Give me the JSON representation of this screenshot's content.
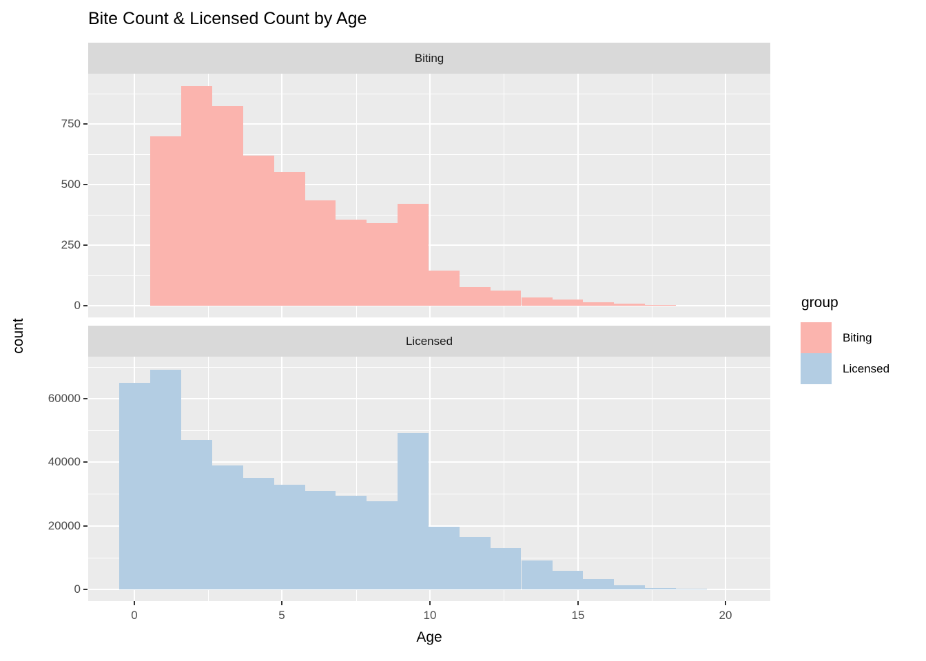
{
  "title": "Bite Count & Licensed Count by Age",
  "axes": {
    "x_label": "Age",
    "y_label": "count",
    "x_ticks": [
      0,
      5,
      10,
      15,
      20
    ]
  },
  "legend": {
    "title": "group",
    "items": [
      {
        "label": "Biting",
        "color": "#FBB4AE"
      },
      {
        "label": "Licensed",
        "color": "#B3CDE3"
      }
    ]
  },
  "colors": {
    "biting_fill": "#FBB4AE",
    "licensed_fill": "#B3CDE3",
    "panel_background": "#EBEBEB",
    "strip_background": "#D9D9D9",
    "gridline": "#FFFFFF",
    "axis_text": "#4D4D4D",
    "tick_mark": "#333333",
    "text": "#000000"
  },
  "chart_data": [
    {
      "type": "bar",
      "facet": "Biting",
      "series": "Biting",
      "color": "#FBB4AE",
      "bin_width": 1.045,
      "bin_starts": [
        0.55,
        1.59,
        2.64,
        3.68,
        4.73,
        5.77,
        6.82,
        7.86,
        8.91,
        9.95,
        11.0,
        12.04,
        13.09,
        14.13,
        15.18,
        16.22,
        17.27
      ],
      "values": [
        700,
        905,
        825,
        620,
        550,
        435,
        355,
        340,
        420,
        145,
        76,
        62,
        35,
        25,
        13,
        8,
        3
      ],
      "xlabel": "Age",
      "ylabel": "count",
      "y_ticks": [
        0,
        250,
        500,
        750
      ],
      "ylim": [
        0,
        957
      ],
      "xlim": [
        -1.55,
        21.52
      ],
      "grid": true
    },
    {
      "type": "bar",
      "facet": "Licensed",
      "series": "Licensed",
      "color": "#B3CDE3",
      "bin_width": 1.045,
      "bin_starts": [
        -0.5,
        0.55,
        1.59,
        2.64,
        3.68,
        4.73,
        5.77,
        6.82,
        7.86,
        8.91,
        9.95,
        11.0,
        12.04,
        13.09,
        14.13,
        15.18,
        16.22,
        17.27,
        18.31
      ],
      "values": [
        64900,
        69000,
        47000,
        39000,
        35000,
        33000,
        31000,
        29500,
        27800,
        49100,
        19800,
        16500,
        13050,
        9100,
        5900,
        3200,
        1200,
        500,
        280
      ],
      "xlabel": "Age",
      "ylabel": "count",
      "y_ticks": [
        0,
        20000,
        40000,
        60000
      ],
      "ylim": [
        0,
        73160
      ],
      "xlim": [
        -1.55,
        21.52
      ],
      "grid": true
    }
  ]
}
